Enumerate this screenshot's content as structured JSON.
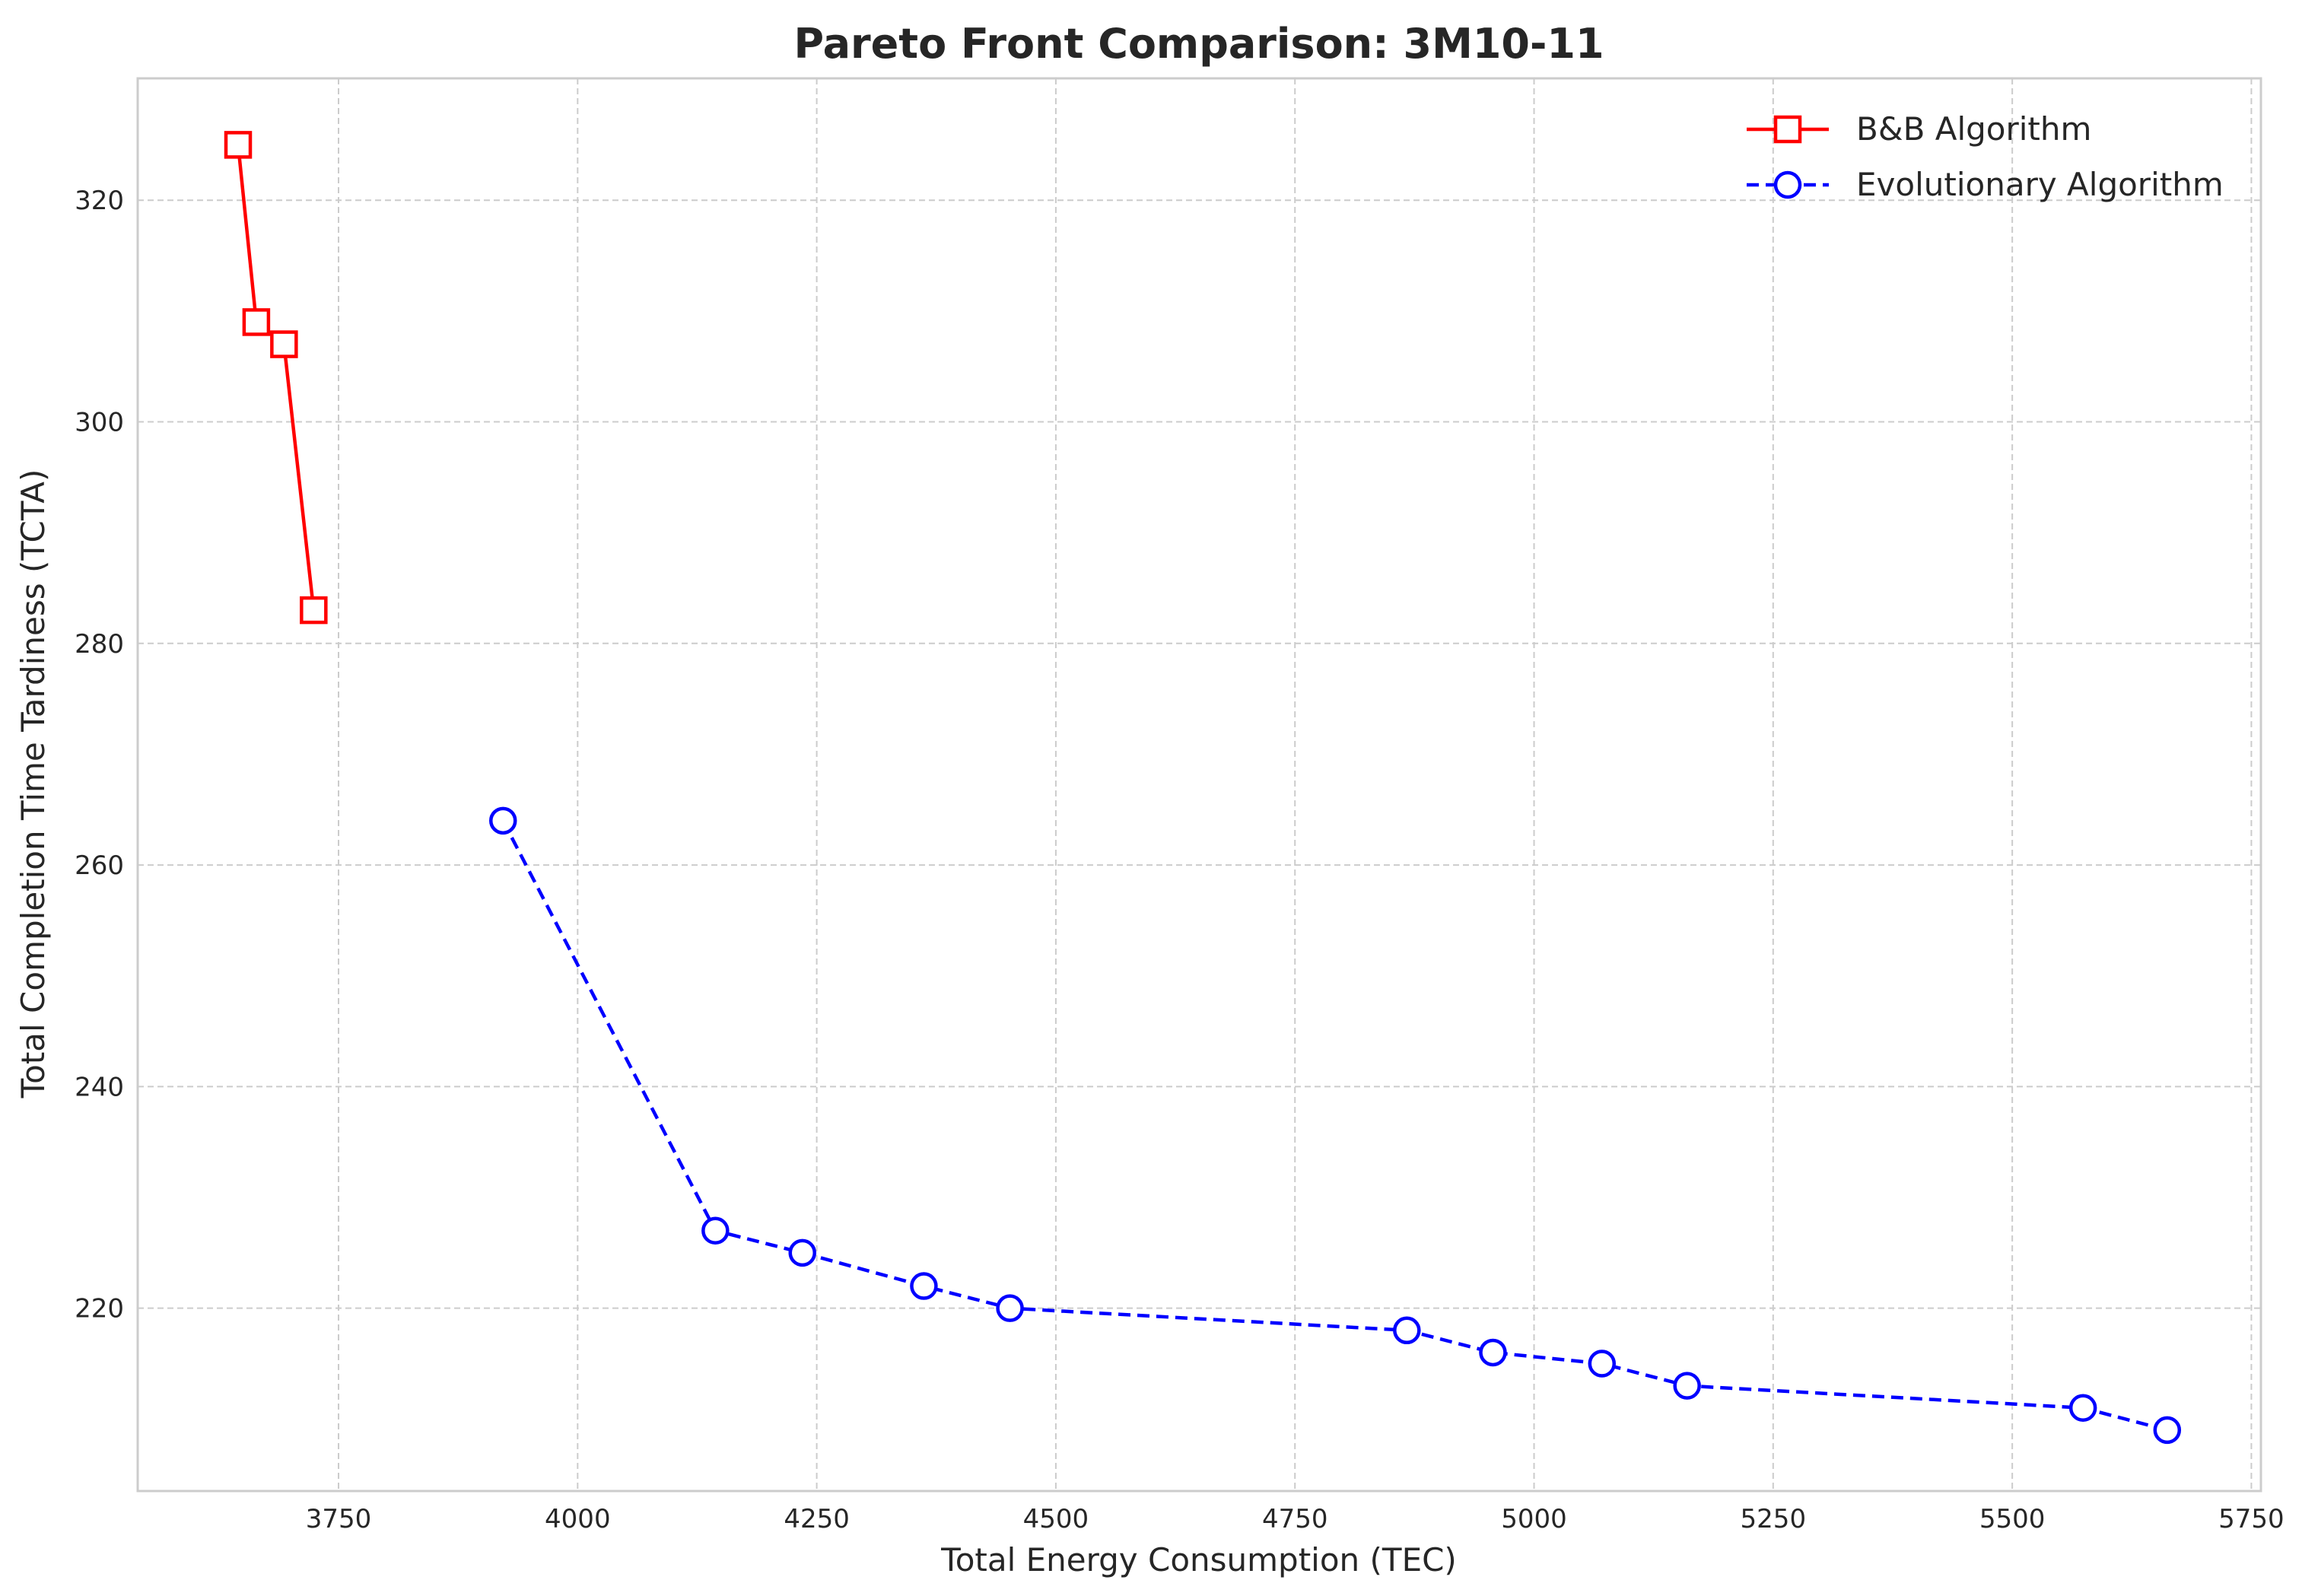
{
  "chart_data": {
    "type": "line",
    "title": "Pareto Front Comparison: 3M10-11",
    "xlabel": "Total Energy Consumption (TEC)",
    "ylabel": "Total Completion Time Tardiness (TCTA)",
    "xlim": [
      3540,
      5760
    ],
    "ylim": [
      203.5,
      331
    ],
    "xticks": [
      3750,
      4000,
      4250,
      4500,
      4750,
      5000,
      5250,
      5500,
      5750
    ],
    "yticks": [
      220,
      240,
      260,
      280,
      300,
      320
    ],
    "grid": true,
    "legend_position": "top-right",
    "series": [
      {
        "name": "B&B Algorithm",
        "color": "#ff0000",
        "line_style": "solid",
        "marker": "square",
        "x": [
          3645,
          3664,
          3693,
          3724
        ],
        "y": [
          325,
          309,
          307,
          283
        ]
      },
      {
        "name": "Evolutionary Algorithm",
        "color": "#0000ff",
        "line_style": "dashed",
        "marker": "circle",
        "x": [
          3922,
          4144,
          4235,
          4362,
          4452,
          4867,
          4957,
          5071,
          5160,
          5574,
          5662
        ],
        "y": [
          264,
          227,
          225,
          222,
          220,
          218,
          216,
          215,
          213,
          211,
          209
        ]
      }
    ]
  }
}
